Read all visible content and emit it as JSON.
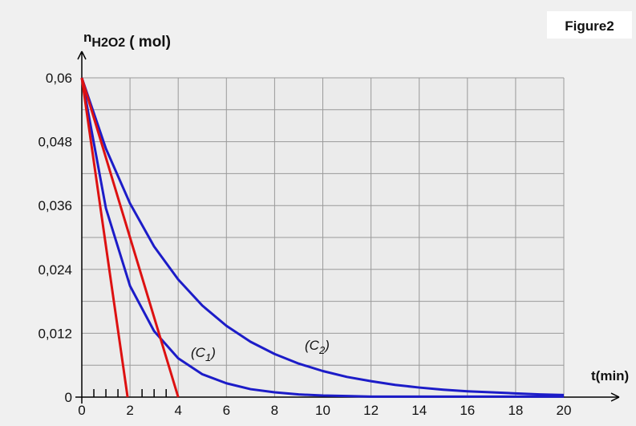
{
  "chart_data": {
    "type": "line",
    "title": "Figure2",
    "y_label": {
      "symbol": "n",
      "species": "H2O2",
      "unit": "( mol)"
    },
    "x_label": "t(min)",
    "xlim": [
      0,
      20
    ],
    "ylim": [
      0,
      0.06
    ],
    "xticks": [
      0,
      2,
      4,
      6,
      8,
      10,
      12,
      14,
      16,
      18,
      20
    ],
    "x_minor_ticks": [
      0.5,
      1,
      1.5,
      2.5,
      3,
      3.5
    ],
    "yticks": [
      0,
      {
        "value": 0.012,
        "label": "0,012"
      },
      {
        "value": 0.024,
        "label": "0,024"
      },
      {
        "value": 0.036,
        "label": "0,036"
      },
      {
        "value": 0.048,
        "label": "0,048"
      },
      {
        "value": 0.06,
        "label": "0,06"
      }
    ],
    "y_minor_grid": [
      0.006,
      0.018,
      0.03,
      0.042,
      0.054
    ],
    "grid": true,
    "series": [
      {
        "color": "#1c1cc8",
        "x": [
          0,
          1,
          2,
          3,
          4,
          5,
          6,
          7,
          8,
          9,
          10,
          11,
          12,
          13,
          14,
          15,
          16,
          17,
          18,
          19,
          20
        ],
        "values": [
          0.06,
          0.0355,
          0.0209,
          0.0124,
          0.0073,
          0.0043,
          0.0026,
          0.0015,
          0.0009,
          0.0005,
          0.0003,
          0.0002,
          0.0001,
          0.0001,
          0.0001,
          0.0001,
          0.0001,
          0.0001,
          0.0001,
          0.0001,
          0.0001
        ]
      },
      {
        "color": "#1c1cc8",
        "x": [
          0,
          1,
          2,
          3,
          4,
          5,
          6,
          7,
          8,
          9,
          10,
          11,
          12,
          13,
          14,
          15,
          16,
          17,
          18,
          19,
          20
        ],
        "values": [
          0.06,
          0.0467,
          0.0364,
          0.0283,
          0.0221,
          0.0172,
          0.0134,
          0.0104,
          0.0081,
          0.0063,
          0.0049,
          0.0038,
          0.003,
          0.0023,
          0.0018,
          0.0014,
          0.0011,
          0.0009,
          0.0007,
          0.0005,
          0.0004
        ]
      },
      {
        "color": "#dd1111",
        "x": [
          0,
          1.9
        ],
        "values": [
          0.06,
          0
        ]
      },
      {
        "color": "#dd1111",
        "x": [
          0,
          4
        ],
        "values": [
          0.06,
          0
        ]
      }
    ],
    "annotations": [
      {
        "prefix": "(C",
        "sub": "1",
        "suffix": ")"
      },
      {
        "prefix": "(C",
        "sub": "2",
        "suffix": ")"
      }
    ]
  }
}
